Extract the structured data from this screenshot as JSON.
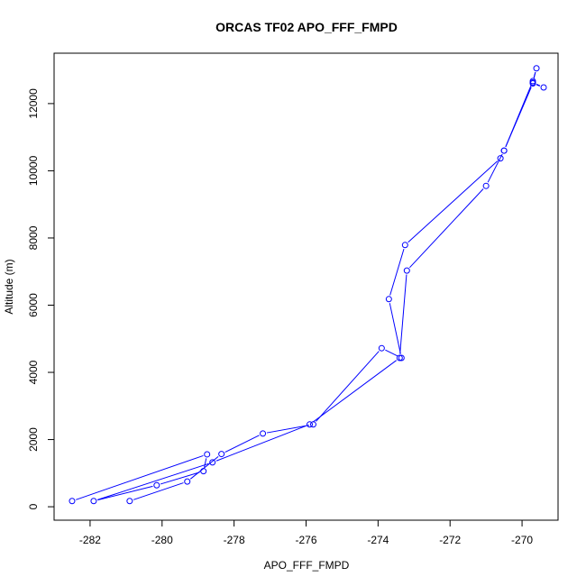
{
  "chart_data": {
    "type": "line",
    "title": "ORCAS TF02 APO_FFF_FMPD",
    "xlabel": "APO_FFF_FMPD",
    "ylabel": "Altitude (m)",
    "xlim": [
      -283.0,
      -269.0
    ],
    "ylim": [
      -400,
      13500
    ],
    "xticks": [
      -282,
      -280,
      -278,
      -276,
      -274,
      -272,
      -270
    ],
    "yticks": [
      0,
      2000,
      4000,
      6000,
      8000,
      10000,
      12000
    ],
    "line_color": "#0000ff",
    "series": [
      {
        "x": [
          -280.9,
          -279.3,
          -278.35,
          -277.2,
          -275.8,
          -273.9,
          -273.35,
          -273.7,
          -273.25,
          -270.6,
          -270.5,
          -269.7,
          -269.6,
          -269.7,
          -269.4,
          -269.7,
          -270.5,
          -271.0,
          -273.2,
          -273.4,
          -275.9,
          -278.6,
          -281.9,
          -280.15,
          -278.85,
          -278.75,
          -282.5
        ],
        "y": [
          170,
          750,
          1570,
          2180,
          2450,
          4720,
          4430,
          6180,
          7790,
          10370,
          10600,
          12670,
          13050,
          12630,
          12480,
          12600,
          10600,
          9550,
          7030,
          4430,
          2450,
          1320,
          170,
          640,
          1060,
          1560,
          170
        ]
      }
    ]
  }
}
